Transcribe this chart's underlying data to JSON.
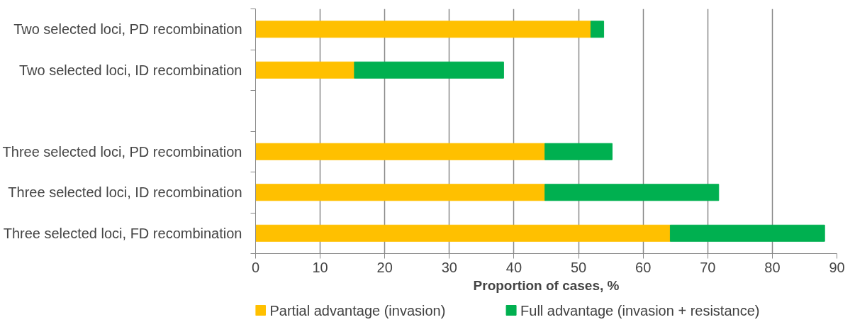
{
  "chart_data": {
    "type": "bar",
    "orientation": "horizontal",
    "stacked": true,
    "categories": [
      "Two selected loci, PD recombination",
      "Two selected loci, ID recombination",
      null,
      "Three selected loci, PD recombination",
      "Three selected loci, ID recombination",
      "Three selected loci, FD recombination"
    ],
    "series": [
      {
        "name": "Partial advantage (invasion)",
        "color": "#ffc000",
        "values": [
          51.9,
          15.3,
          null,
          44.8,
          44.8,
          64.2
        ]
      },
      {
        "name": "Full advantage (invasion + resistance)",
        "color": "#00b050",
        "values": [
          2.0,
          23.1,
          null,
          10.4,
          26.9,
          23.9
        ]
      }
    ],
    "xlabel": "Proportion of cases, %",
    "xlim": [
      0,
      90
    ],
    "xticks": [
      0,
      10,
      20,
      30,
      40,
      50,
      60,
      70,
      80,
      90
    ],
    "grid": "x",
    "legend": "bottom"
  }
}
